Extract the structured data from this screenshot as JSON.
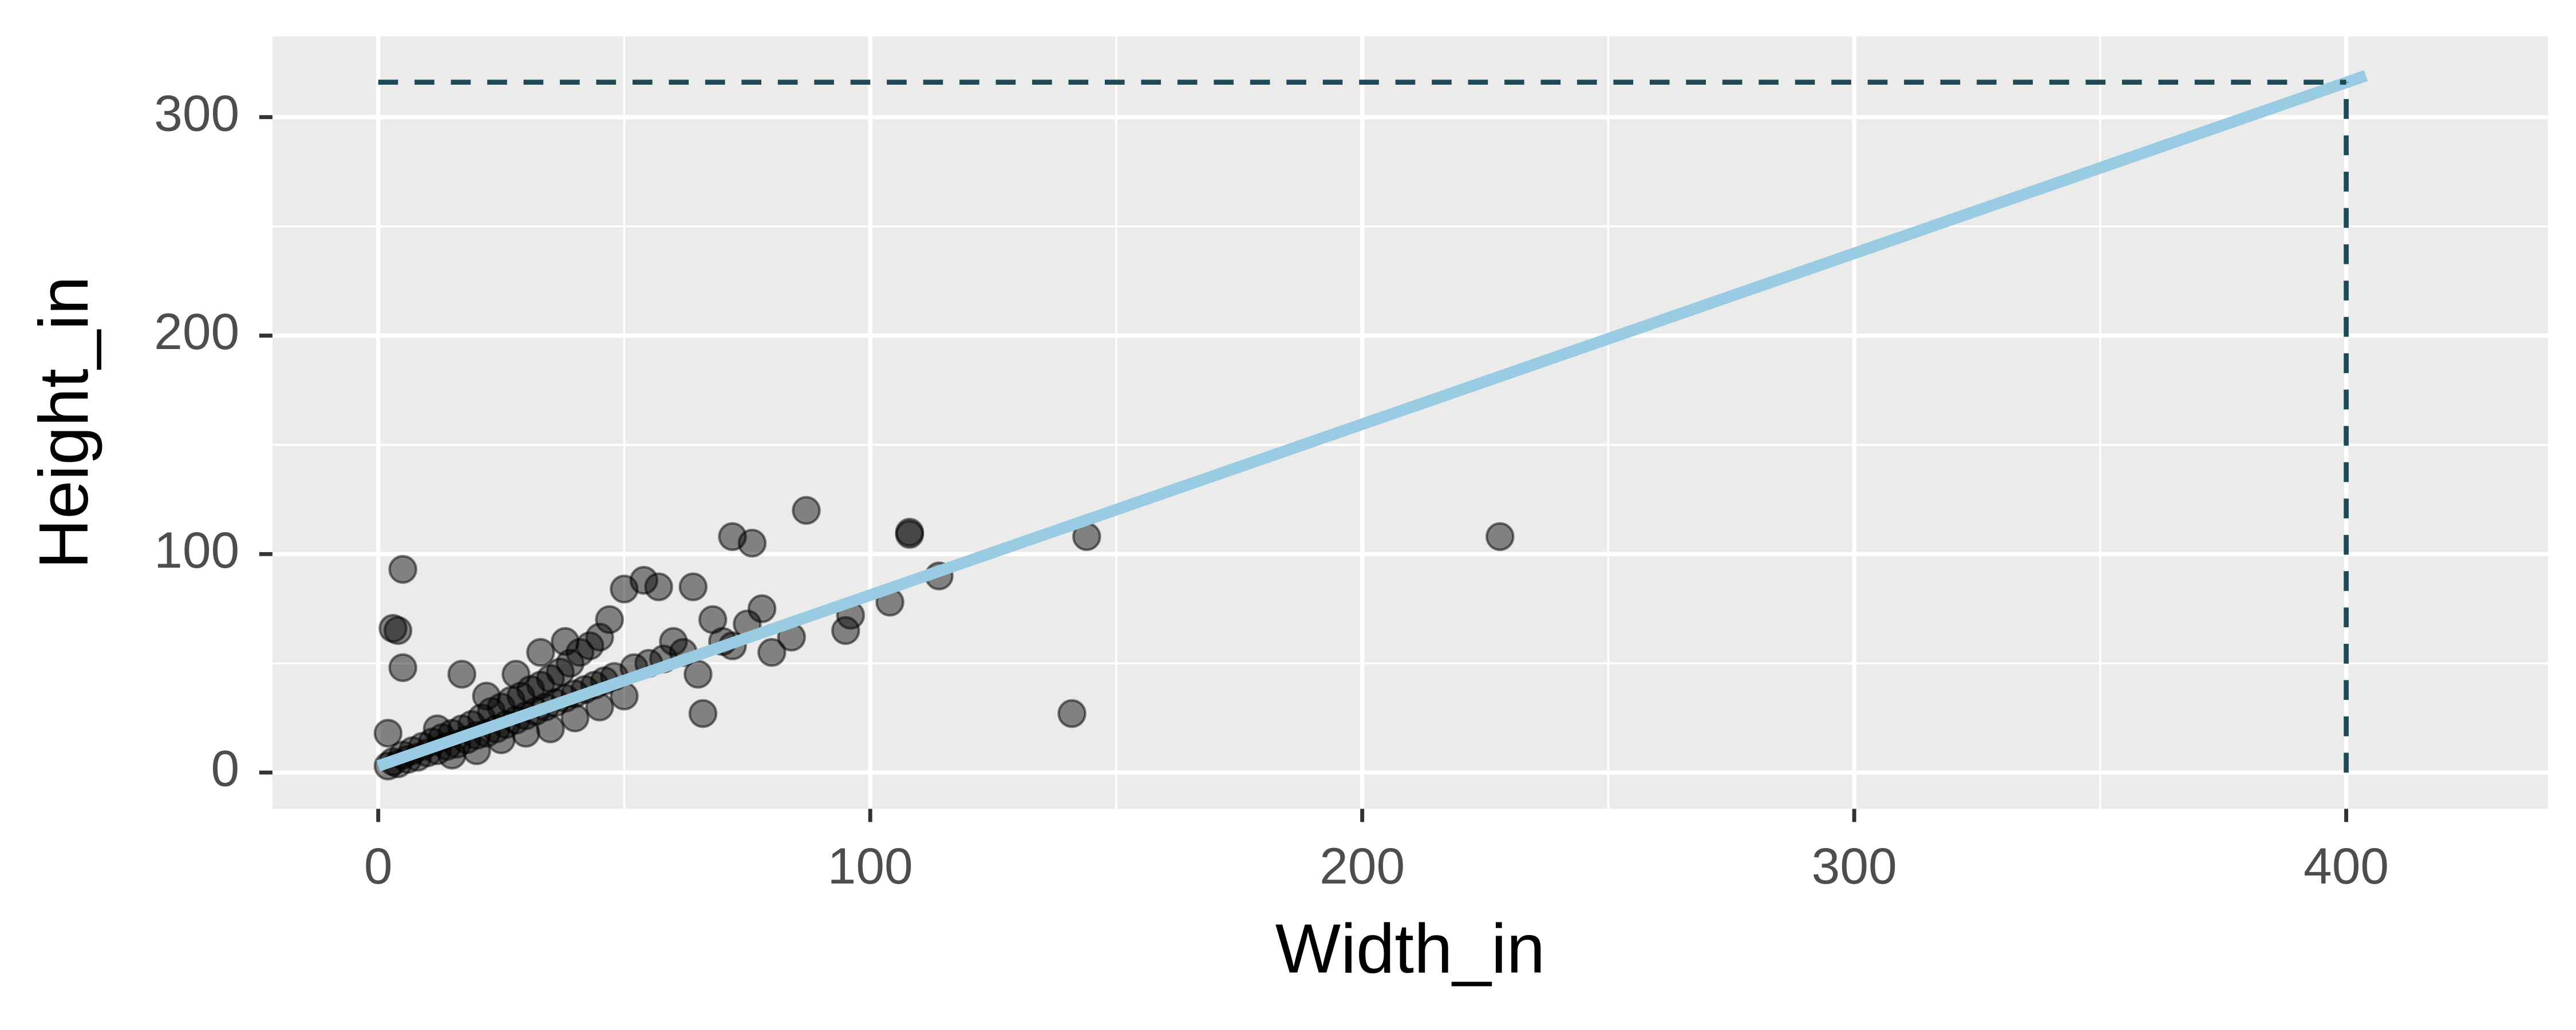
{
  "chart_data": {
    "type": "scatter",
    "x_label": "Width_in",
    "y_label": "Height_in",
    "xlim": [
      -21.5,
      441
    ],
    "ylim": [
      -16.6,
      337
    ],
    "xticks": [
      0,
      100,
      200,
      300,
      400
    ],
    "yticks": [
      0,
      100,
      200,
      300
    ],
    "xminor": [
      50,
      150,
      250,
      350
    ],
    "yminor": [
      50,
      150,
      250
    ],
    "grid": true,
    "points": {
      "color": "#000000",
      "x": [
        2,
        3,
        4,
        5,
        6,
        7,
        8,
        9,
        10,
        11,
        12,
        13,
        14,
        15,
        16,
        17,
        18,
        19,
        20,
        21,
        22,
        23,
        24,
        25,
        26,
        27,
        28,
        29,
        30,
        31,
        32,
        33,
        34,
        35,
        36,
        37,
        38,
        39,
        40,
        41,
        42,
        43,
        44,
        45,
        46,
        47,
        48,
        50,
        52,
        54,
        55,
        57,
        58,
        60,
        62,
        64,
        65,
        66,
        68,
        70,
        72,
        75,
        78,
        80,
        84,
        12,
        15,
        20,
        25,
        30,
        35,
        40,
        45,
        50,
        28,
        33,
        38,
        22,
        228,
        141,
        144,
        108,
        108,
        114,
        104,
        95,
        96,
        87,
        72,
        76,
        5,
        4,
        3,
        5,
        2,
        17
      ],
      "y": [
        3,
        5,
        4,
        8,
        6,
        10,
        7,
        12,
        9,
        14,
        10,
        16,
        12,
        18,
        13,
        20,
        15,
        22,
        17,
        25,
        18,
        28,
        20,
        30,
        22,
        33,
        24,
        35,
        26,
        38,
        28,
        40,
        30,
        43,
        32,
        46,
        34,
        50,
        36,
        55,
        38,
        58,
        40,
        62,
        42,
        70,
        44,
        84,
        48,
        88,
        50,
        85,
        52,
        60,
        55,
        85,
        45,
        27,
        70,
        60,
        58,
        68,
        75,
        55,
        62,
        20,
        8,
        10,
        15,
        18,
        20,
        25,
        30,
        35,
        45,
        55,
        60,
        35,
        108,
        27,
        108,
        110,
        109,
        90,
        78,
        65,
        72,
        120,
        108,
        105,
        93,
        65,
        66,
        48,
        18,
        45
      ]
    },
    "fit": {
      "color": "#99cbe3",
      "x": [
        0,
        404
      ],
      "y": [
        3,
        319
      ]
    },
    "hline": {
      "color": "#1d4a57",
      "y": 316,
      "x": [
        0,
        400
      ]
    },
    "vline": {
      "color": "#1d4a57",
      "x": 400,
      "y": [
        0,
        316
      ]
    }
  }
}
